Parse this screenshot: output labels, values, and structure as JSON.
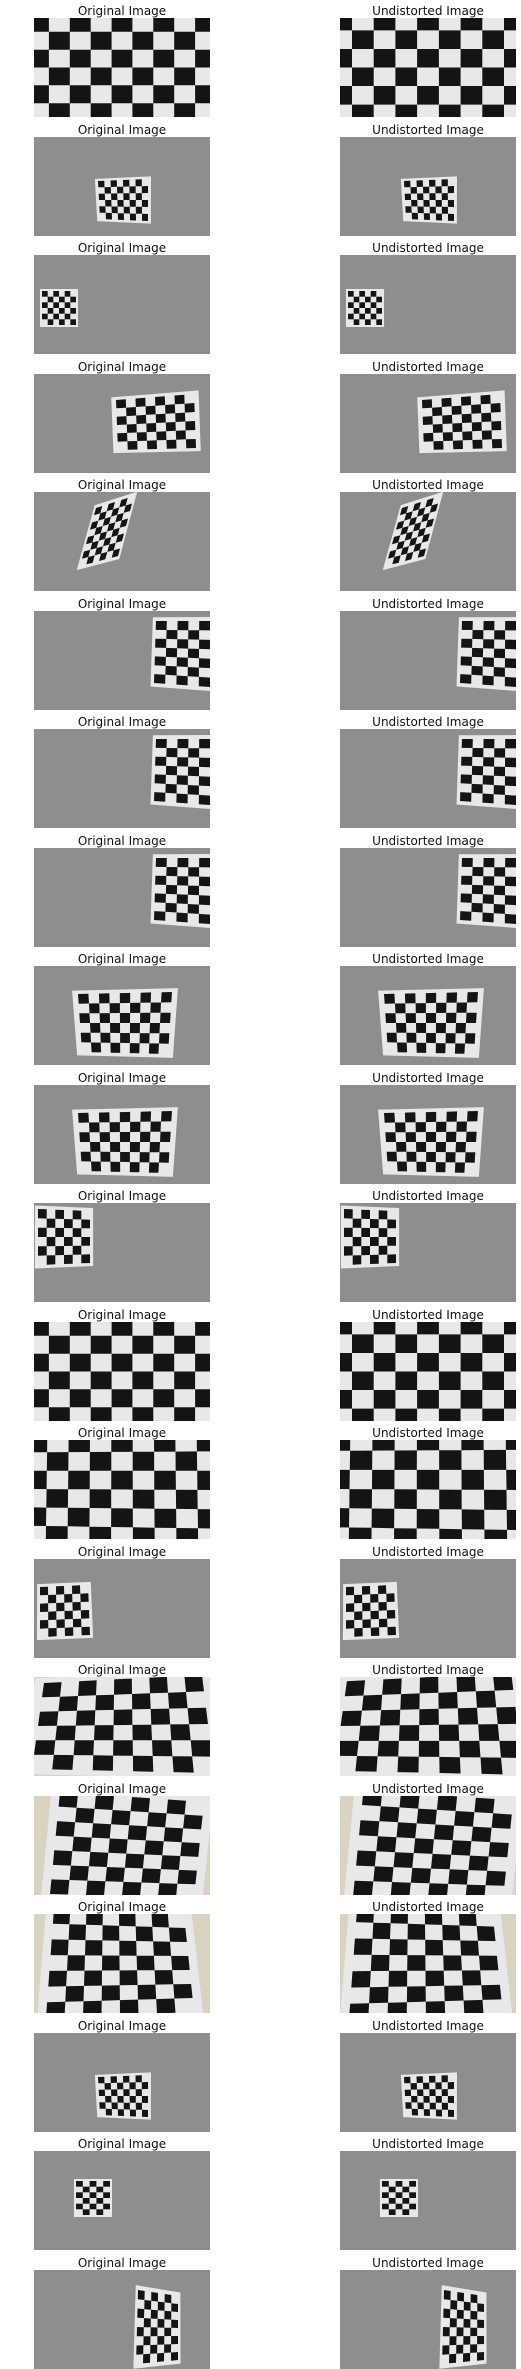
{
  "columns": [
    {
      "title": "Original Image"
    },
    {
      "title": "Undistorted Image"
    }
  ],
  "rows": [
    {
      "scene": "closeup"
    },
    {
      "scene": "center-small"
    },
    {
      "scene": "left-small"
    },
    {
      "scene": "right-tilt"
    },
    {
      "scene": "rotated"
    },
    {
      "scene": "right-edge"
    },
    {
      "scene": "right-edge"
    },
    {
      "scene": "right-edge"
    },
    {
      "scene": "center-medium"
    },
    {
      "scene": "center-medium"
    },
    {
      "scene": "left-edge"
    },
    {
      "scene": "closeup"
    },
    {
      "scene": "closeup-barrel"
    },
    {
      "scene": "left-low"
    },
    {
      "scene": "closeup-perspective"
    },
    {
      "scene": "closeup-skew"
    },
    {
      "scene": "closeup-warp"
    },
    {
      "scene": "center-small"
    },
    {
      "scene": "left-tiny"
    },
    {
      "scene": "right-perspective"
    }
  ],
  "colors": {
    "background_gray": "#8e8e90",
    "paper": "#e8e8ea",
    "square_dark": "#141414",
    "cream_wall": "#d9d4c2"
  }
}
